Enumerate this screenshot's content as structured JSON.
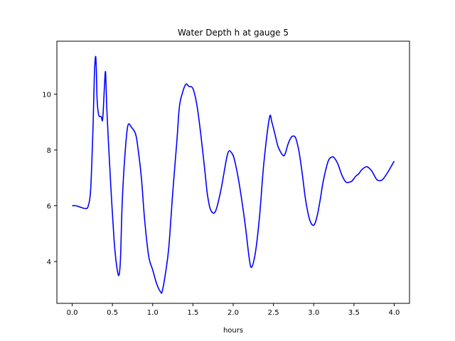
{
  "chart_data": {
    "type": "line",
    "title": "Water Depth h at gauge 5",
    "xlabel": "hours",
    "ylabel": "",
    "xlim": [
      -0.19,
      4.19
    ],
    "ylim": [
      2.5,
      11.9
    ],
    "x_ticks": [
      0.0,
      0.5,
      1.0,
      1.5,
      2.0,
      2.5,
      3.0,
      3.5,
      4.0
    ],
    "x_tick_labels": [
      "0.0",
      "0.5",
      "1.0",
      "1.5",
      "2.0",
      "2.5",
      "3.0",
      "3.5",
      "4.0"
    ],
    "y_ticks": [
      4,
      6,
      8,
      10
    ],
    "y_tick_labels": [
      "4",
      "6",
      "8",
      "10"
    ],
    "grid": false,
    "series": [
      {
        "color": "#0000ff",
        "x": [
          0.0,
          0.05,
          0.1,
          0.17,
          0.2,
          0.23,
          0.26,
          0.275,
          0.29,
          0.3,
          0.31,
          0.33,
          0.36,
          0.38,
          0.41,
          0.42,
          0.43,
          0.45,
          0.48,
          0.52,
          0.55,
          0.58,
          0.6,
          0.62,
          0.65,
          0.69,
          0.74,
          0.79,
          0.82,
          0.86,
          0.9,
          0.95,
          1.0,
          1.05,
          1.1,
          1.12,
          1.16,
          1.2,
          1.25,
          1.3,
          1.33,
          1.36,
          1.41,
          1.45,
          1.5,
          1.55,
          1.6,
          1.65,
          1.68,
          1.72,
          1.78,
          1.85,
          1.93,
          1.98,
          2.02,
          2.08,
          2.15,
          2.2,
          2.23,
          2.28,
          2.33,
          2.38,
          2.45,
          2.48,
          2.52,
          2.56,
          2.62,
          2.65,
          2.68,
          2.72,
          2.75,
          2.78,
          2.82,
          2.86,
          2.9,
          2.95,
          3.0,
          3.04,
          3.08,
          3.12,
          3.18,
          3.23,
          3.26,
          3.3,
          3.35,
          3.4,
          3.45,
          3.48,
          3.52,
          3.56,
          3.6,
          3.66,
          3.72,
          3.78,
          3.82,
          3.86,
          3.92,
          3.97,
          4.0
        ],
        "values": [
          6.0,
          6.0,
          5.95,
          5.9,
          6.0,
          6.6,
          8.9,
          10.6,
          11.35,
          10.9,
          9.8,
          9.25,
          9.2,
          9.15,
          10.75,
          10.4,
          9.5,
          8.3,
          6.7,
          4.8,
          3.9,
          3.5,
          4.1,
          6.0,
          7.6,
          8.85,
          8.8,
          8.55,
          8.0,
          7.0,
          5.5,
          4.2,
          3.7,
          3.2,
          2.9,
          2.95,
          3.6,
          4.5,
          6.5,
          8.3,
          9.5,
          9.95,
          10.35,
          10.28,
          10.2,
          9.6,
          8.5,
          7.2,
          6.4,
          5.85,
          5.8,
          6.6,
          7.85,
          7.9,
          7.6,
          6.7,
          5.3,
          4.1,
          3.8,
          4.4,
          5.7,
          7.5,
          9.15,
          9.0,
          8.55,
          8.1,
          7.8,
          7.9,
          8.2,
          8.45,
          8.5,
          8.4,
          7.9,
          7.1,
          6.2,
          5.5,
          5.3,
          5.6,
          6.2,
          6.9,
          7.6,
          7.75,
          7.7,
          7.5,
          7.1,
          6.85,
          6.85,
          6.9,
          7.05,
          7.15,
          7.3,
          7.4,
          7.25,
          6.95,
          6.9,
          6.95,
          7.2,
          7.45,
          7.6
        ]
      }
    ]
  }
}
